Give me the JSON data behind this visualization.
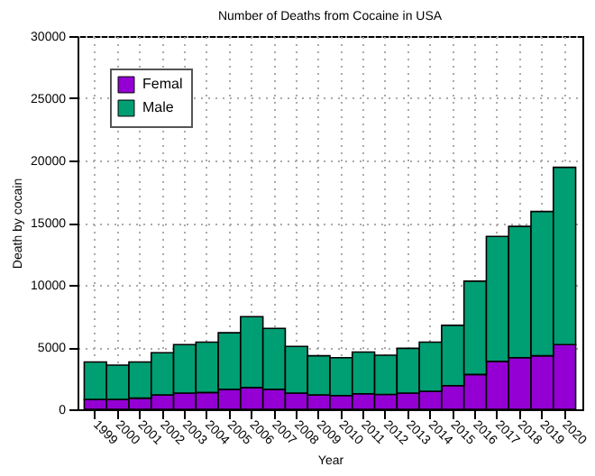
{
  "chart_data": {
    "type": "bar",
    "stacked": true,
    "title": "Number of Deaths from Cocaine in USA",
    "xlabel": "Year",
    "ylabel": "Death by cocain",
    "categories": [
      "1999",
      "2000",
      "2001",
      "2002",
      "2003",
      "2004",
      "2005",
      "2006",
      "2007",
      "2008",
      "2009",
      "2010",
      "2011",
      "2012",
      "2013",
      "2014",
      "2015",
      "2016",
      "2017",
      "2018",
      "2019",
      "2020"
    ],
    "series": [
      {
        "name": "Femal",
        "color": "#9400d3",
        "values": [
          800,
          800,
          900,
          1150,
          1300,
          1350,
          1600,
          1750,
          1600,
          1300,
          1150,
          1100,
          1250,
          1200,
          1300,
          1450,
          1900,
          2800,
          3850,
          4150,
          4300,
          5200
        ]
      },
      {
        "name": "Male",
        "color": "#009e73",
        "values": [
          3000,
          2750,
          2900,
          3400,
          3900,
          4050,
          4550,
          5700,
          4900,
          3750,
          3150,
          3050,
          3350,
          3150,
          3600,
          3950,
          4850,
          7500,
          10050,
          10550,
          11600,
          14250
        ]
      }
    ],
    "ylim": [
      0,
      30000
    ],
    "yticks": [
      0,
      5000,
      10000,
      15000,
      20000,
      25000,
      30000
    ],
    "grid": true,
    "legend": "top left"
  }
}
